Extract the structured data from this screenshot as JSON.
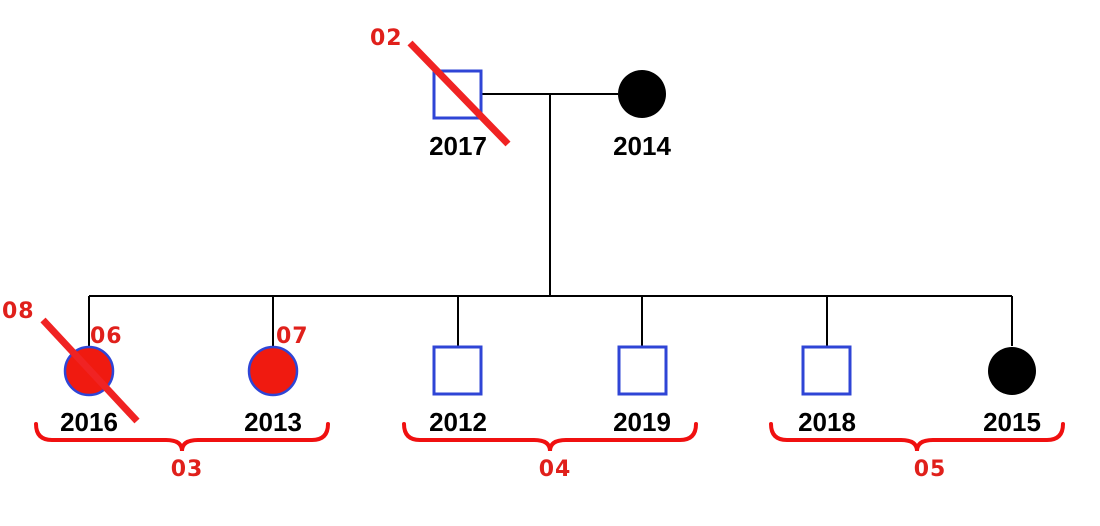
{
  "colors": {
    "male_outline": "#2f45d6",
    "affected_female_fill": "#f01a10",
    "unaffected_female_fill": "#000000",
    "annotation": "#e0201b",
    "lines": "#000000"
  },
  "parents": {
    "father": {
      "year": "2017",
      "sex": "male",
      "deceased": true
    },
    "mother": {
      "year": "2014",
      "sex": "female",
      "affected": false
    }
  },
  "children": [
    {
      "year": "2016",
      "sex": "female",
      "affected": true,
      "deceased": true,
      "annotation": "06"
    },
    {
      "year": "2013",
      "sex": "female",
      "affected": true,
      "deceased": false,
      "annotation": "07"
    },
    {
      "year": "2012",
      "sex": "male"
    },
    {
      "year": "2019",
      "sex": "male"
    },
    {
      "year": "2018",
      "sex": "male"
    },
    {
      "year": "2015",
      "sex": "female",
      "affected": false
    }
  ],
  "annotations": {
    "father_slash": "02",
    "child_slash": "08",
    "group_1": "03",
    "group_2": "04",
    "group_3": "05"
  }
}
